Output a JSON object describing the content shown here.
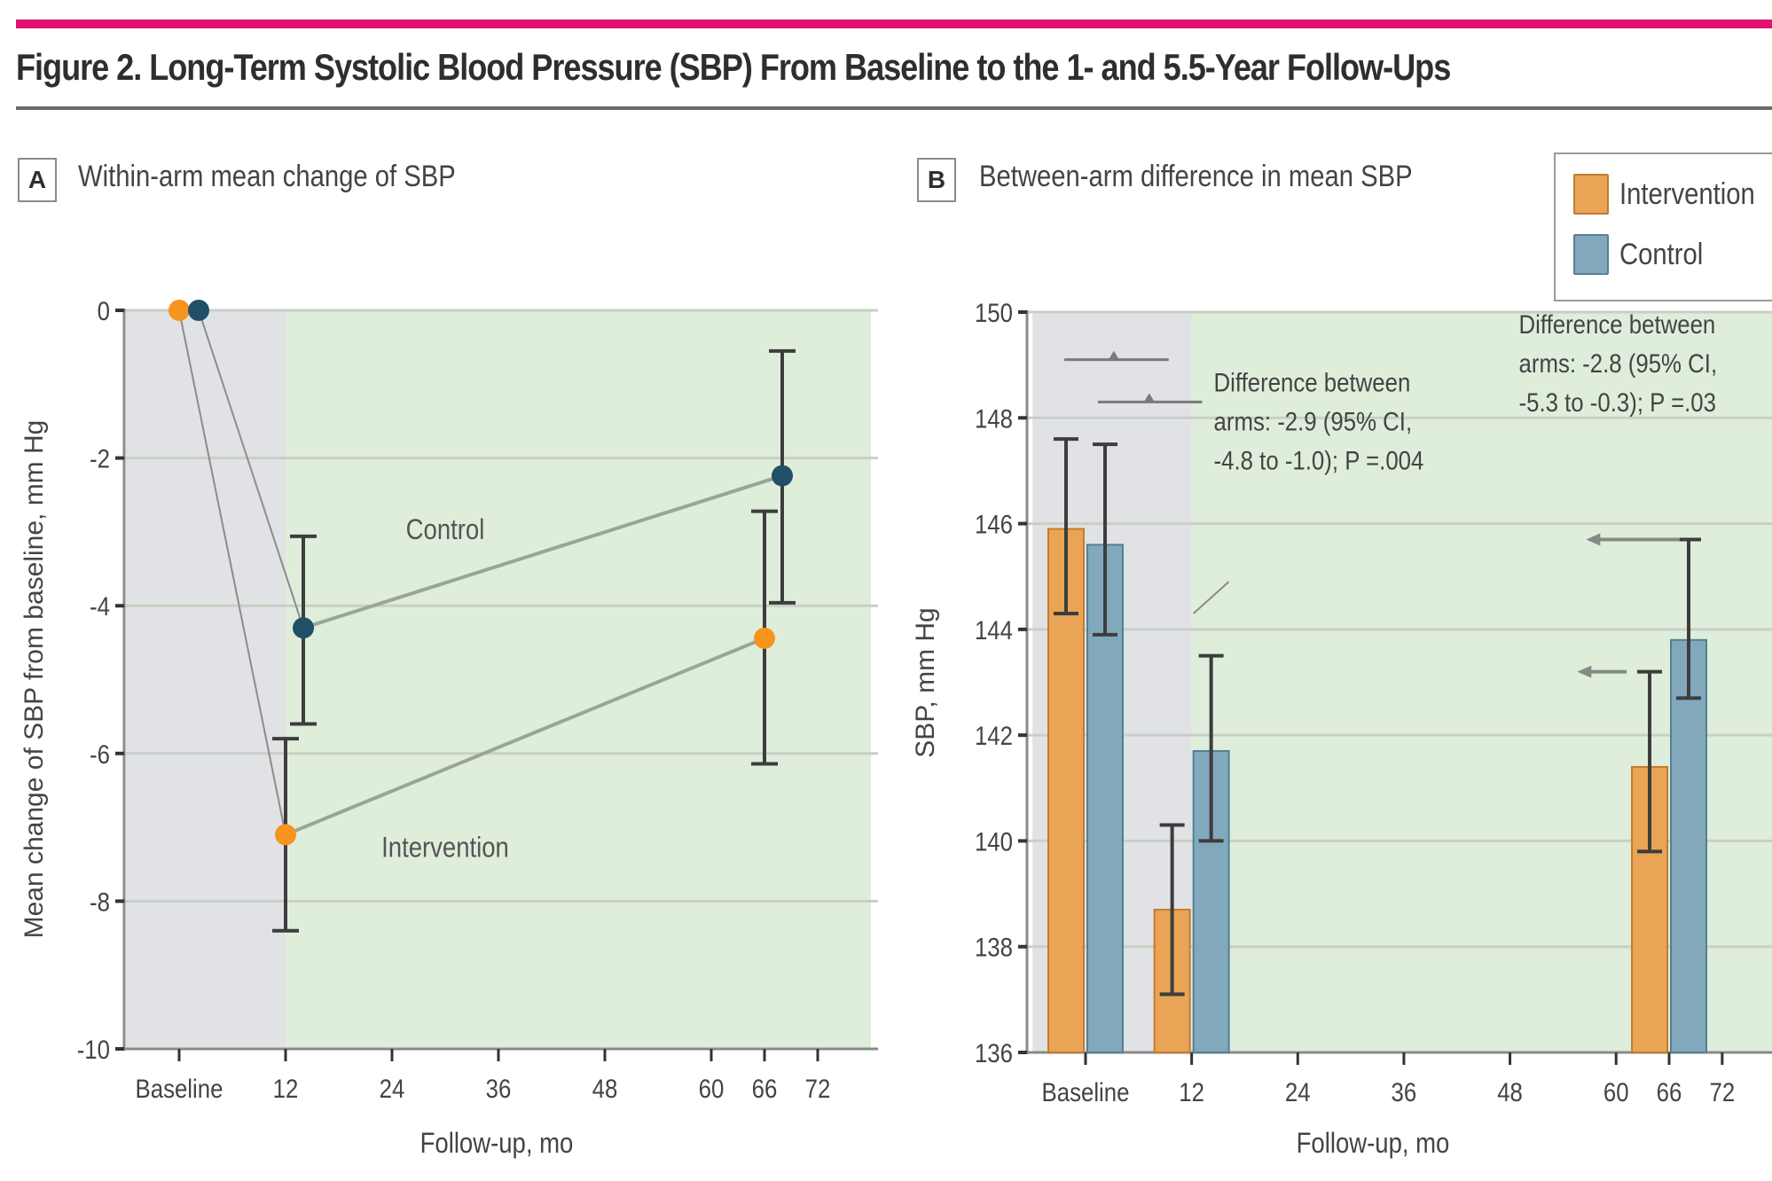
{
  "figure": {
    "title": "Figure 2. Long-Term Systolic Blood Pressure (SBP) From Baseline to the 1- and 5.5-Year Follow-Ups",
    "accent_color": "#e0116f"
  },
  "legend": {
    "placement": "top-right",
    "items": [
      {
        "label": "Intervention",
        "color": "#e9a455",
        "border": "#c47c2c"
      },
      {
        "label": "Control",
        "color": "#82a9bb",
        "border": "#557f93"
      }
    ]
  },
  "colors": {
    "intervention_point": "#f7941d",
    "control_point": "#1f5068",
    "baseline_shade": "#e1e2e6",
    "followup_shade": "#dfeedb",
    "gridline": "#c9cfc6",
    "line": "#9aa59a",
    "errorbar": "#3d3d3d"
  },
  "chart_data": [
    {
      "panel": "A",
      "type": "line",
      "title": "Within-arm mean change of SBP",
      "xlabel": "Follow-up, mo",
      "ylabel": "Mean change of SBP from baseline, mm Hg",
      "xlim": [
        -6,
        78
      ],
      "ylim": [
        -10,
        0
      ],
      "grid": true,
      "shaded_regions": [
        {
          "from": -6,
          "to": 12,
          "name": "baseline-period"
        },
        {
          "from": 12,
          "to": 78,
          "name": "follow-up-period"
        }
      ],
      "x_ticks": [
        {
          "value": 0,
          "label": "Baseline"
        },
        {
          "value": 12,
          "label": "12"
        },
        {
          "value": 24,
          "label": "24"
        },
        {
          "value": 36,
          "label": "36"
        },
        {
          "value": 48,
          "label": "48"
        },
        {
          "value": 60,
          "label": "60"
        },
        {
          "value": 66,
          "label": "66"
        },
        {
          "value": 72,
          "label": "72"
        }
      ],
      "y_ticks": [
        {
          "value": 0,
          "label": "0"
        },
        {
          "value": -2,
          "label": "-2"
        },
        {
          "value": -4,
          "label": "-4"
        },
        {
          "value": -6,
          "label": "-6"
        },
        {
          "value": -8,
          "label": "-8"
        },
        {
          "value": -10,
          "label": "-10"
        }
      ],
      "series": [
        {
          "name": "Intervention",
          "label": "Intervention",
          "label_at": [
            30,
            -7.4
          ],
          "points": [
            {
              "x": 0,
              "y": 0
            },
            {
              "x": 12,
              "y": -7.1,
              "ci": [
                -8.4,
                -5.8
              ]
            },
            {
              "x": 66,
              "y": -4.44,
              "ci": [
                -6.14,
                -2.72
              ]
            }
          ]
        },
        {
          "name": "Control",
          "label": "Control",
          "label_at": [
            30,
            -3.1
          ],
          "points": [
            {
              "x": 2.2,
              "y": 0
            },
            {
              "x": 14,
              "y": -4.3,
              "ci": [
                -5.6,
                -3.06
              ]
            },
            {
              "x": 68,
              "y": -2.24,
              "ci": [
                -3.96,
                -0.55
              ]
            }
          ]
        }
      ]
    },
    {
      "panel": "B",
      "type": "bar",
      "title": "Between-arm difference in mean SBP",
      "xlabel": "Follow-up, mo",
      "ylabel": "SBP, mm Hg",
      "xlim": [
        -6,
        78
      ],
      "ylim": [
        136,
        150
      ],
      "grid": true,
      "shaded_regions": [
        {
          "from": -6,
          "to": 12,
          "name": "baseline-period"
        },
        {
          "from": 12,
          "to": 78,
          "name": "follow-up-period"
        }
      ],
      "x_ticks": [
        {
          "value": 0,
          "label": "Baseline"
        },
        {
          "value": 12,
          "label": "12"
        },
        {
          "value": 24,
          "label": "24"
        },
        {
          "value": 36,
          "label": "36"
        },
        {
          "value": 48,
          "label": "48"
        },
        {
          "value": 60,
          "label": "60"
        },
        {
          "value": 66,
          "label": "66"
        },
        {
          "value": 72,
          "label": "72"
        }
      ],
      "y_ticks": [
        {
          "value": 136,
          "label": "136"
        },
        {
          "value": 138,
          "label": "138"
        },
        {
          "value": 140,
          "label": "140"
        },
        {
          "value": 142,
          "label": "142"
        },
        {
          "value": 144,
          "label": "144"
        },
        {
          "value": 146,
          "label": "146"
        },
        {
          "value": 148,
          "label": "148"
        },
        {
          "value": 150,
          "label": "150"
        }
      ],
      "categories": [
        "Baseline",
        "12",
        "66"
      ],
      "category_x": [
        0,
        12,
        66
      ],
      "series": [
        {
          "name": "Intervention",
          "values": [
            145.9,
            138.7,
            141.4
          ],
          "ci": [
            [
              144.3,
              147.6
            ],
            [
              137.1,
              140.3
            ],
            [
              139.8,
              143.2
            ]
          ]
        },
        {
          "name": "Control",
          "values": [
            145.6,
            141.7,
            143.8
          ],
          "ci": [
            [
              143.9,
              147.5
            ],
            [
              140.0,
              143.5
            ],
            [
              142.7,
              145.7
            ]
          ]
        }
      ],
      "annotations": [
        {
          "lines": [
            "Difference between",
            "arms: -2.9 (95% CI,",
            "-4.8 to -1.0); P =.004"
          ],
          "x": 14.5,
          "y": 148.5
        },
        {
          "lines": [
            "Difference between",
            "arms: -2.8 (95% CI,",
            "-5.3 to -0.3); P =.03"
          ],
          "x": 49,
          "y": 149.6
        }
      ]
    }
  ]
}
